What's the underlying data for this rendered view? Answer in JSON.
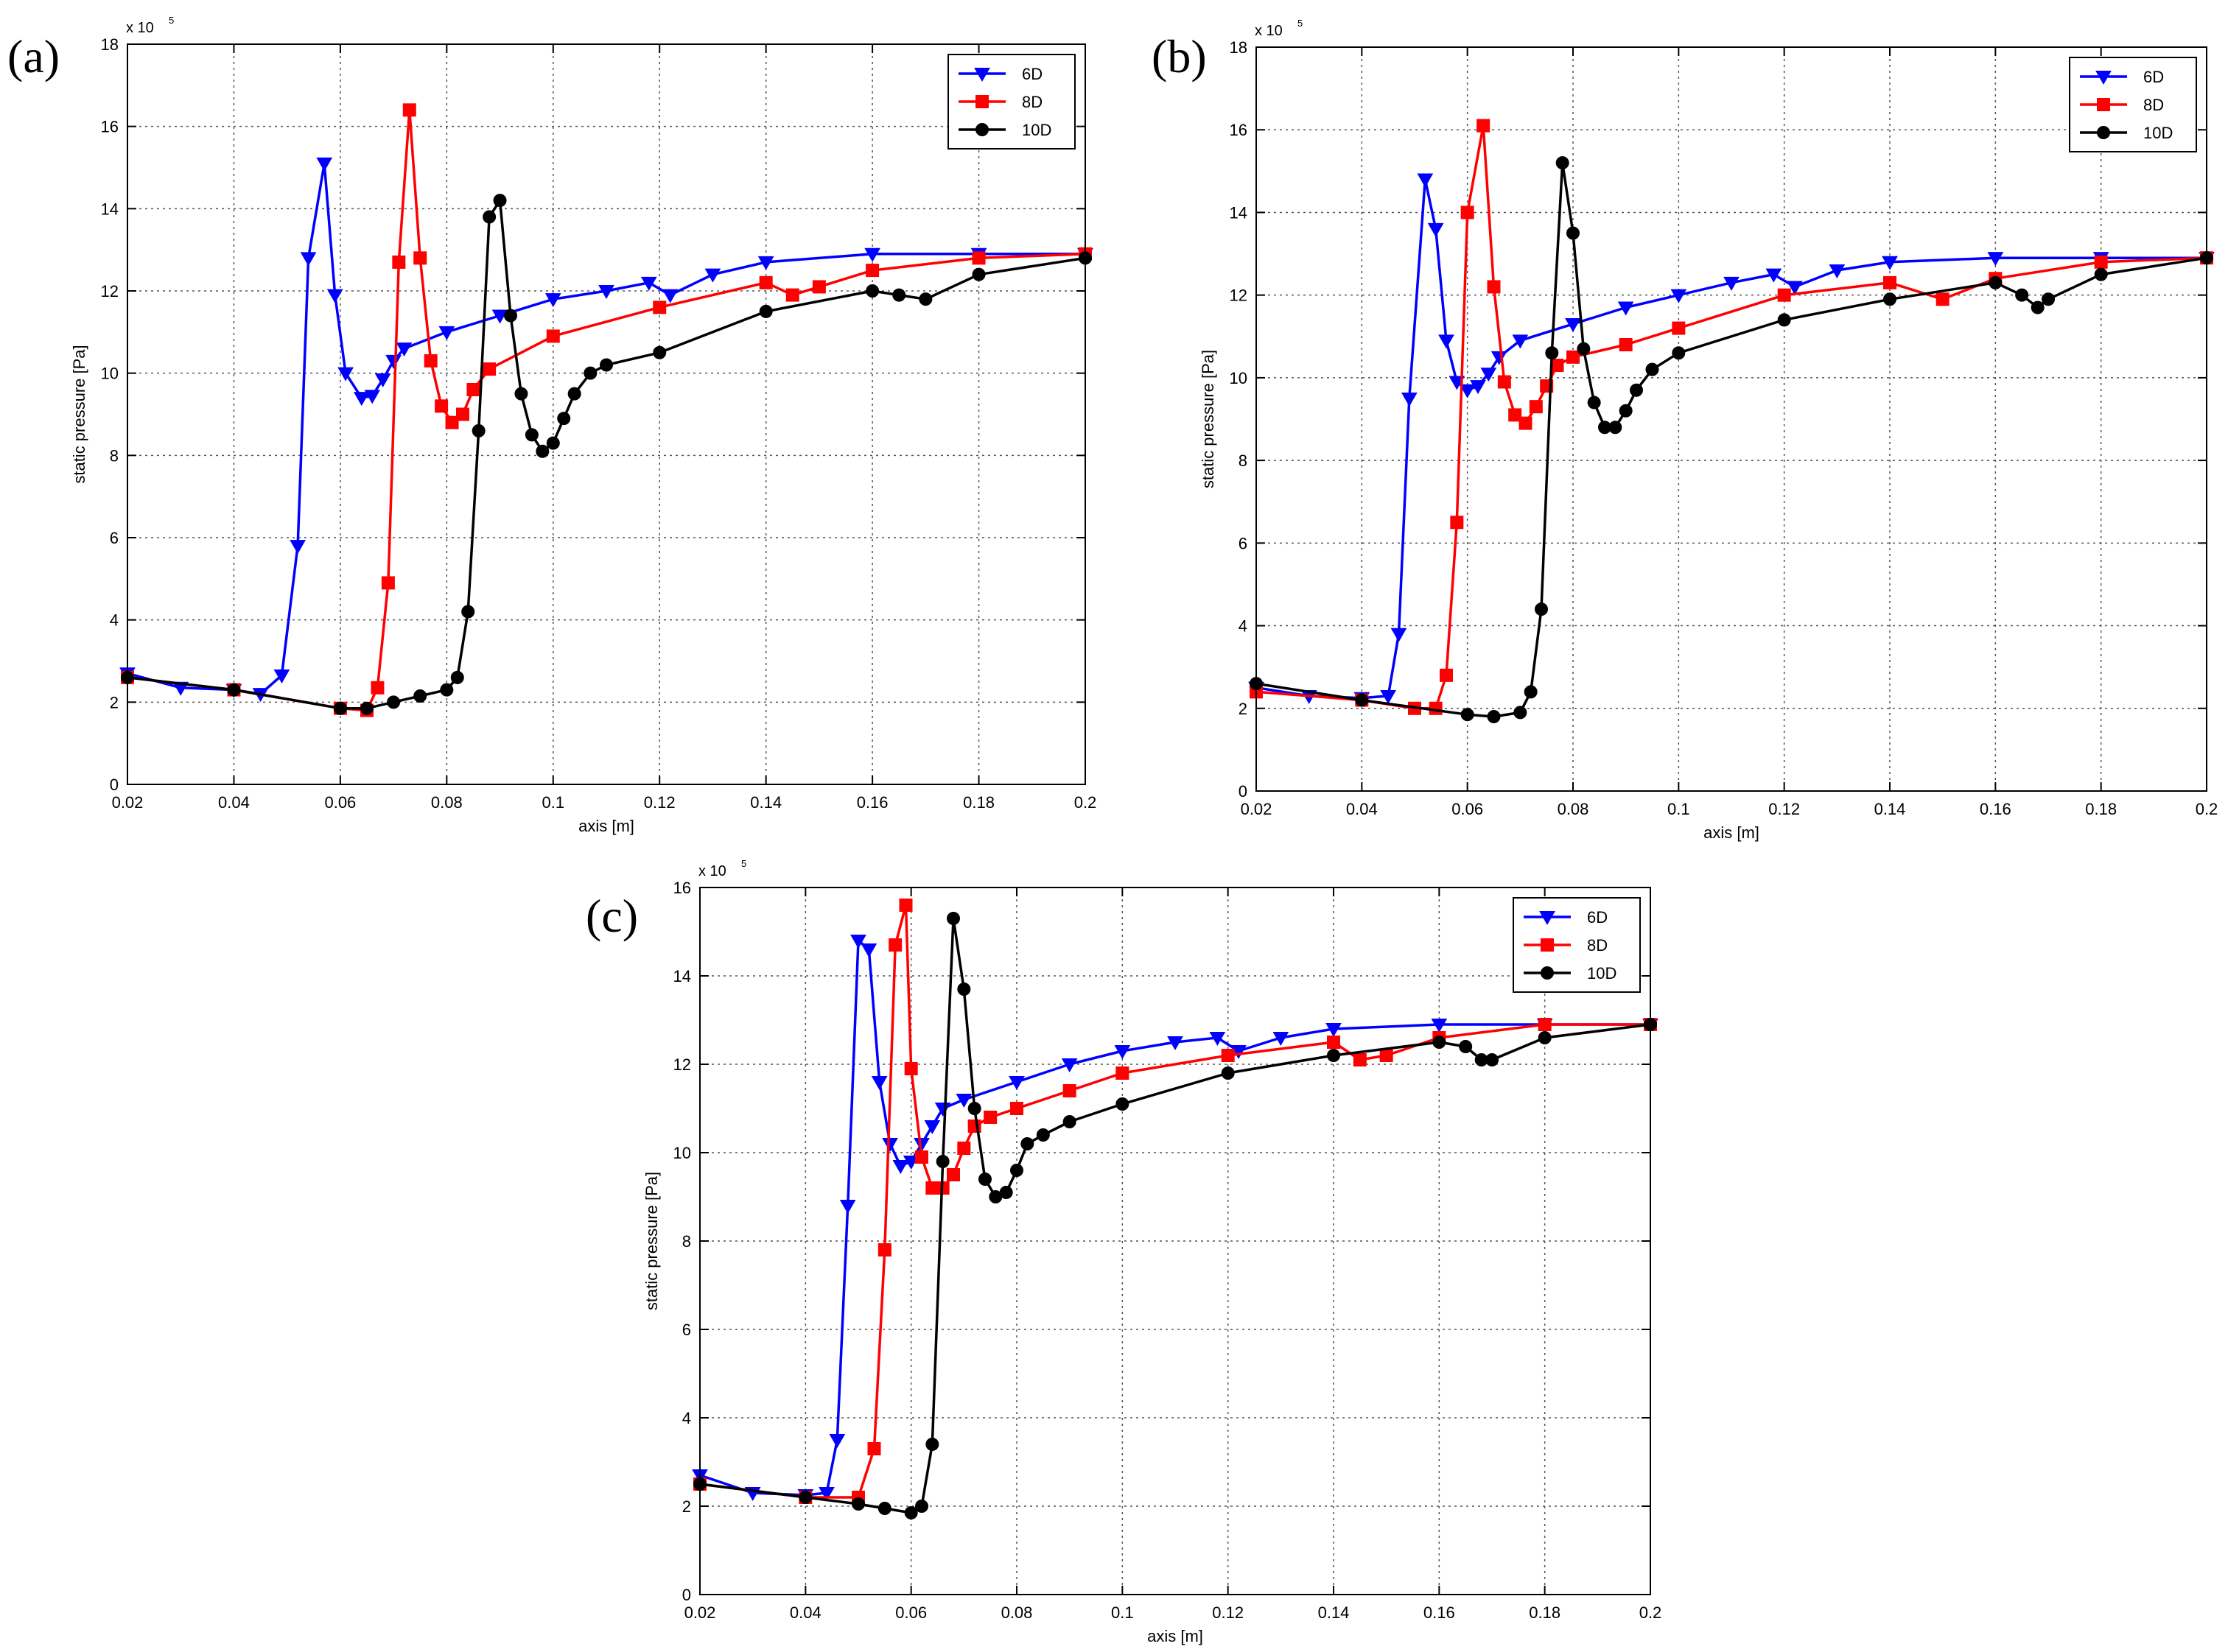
{
  "chart_data": [
    {
      "type": "line",
      "label": "(a)",
      "xlabel": "axis [m]",
      "ylabel": "static pressure [Pa]",
      "y_scale_label": "x 10",
      "y_scale_exponent": "5",
      "xlim": [
        0.02,
        0.2
      ],
      "ylim": [
        0,
        18
      ],
      "xticks": [
        "0.02",
        "0.04",
        "0.06",
        "0.08",
        "0.1",
        "0.12",
        "0.14",
        "0.16",
        "0.18",
        "0.2"
      ],
      "yticks": [
        "0",
        "2",
        "4",
        "6",
        "8",
        "10",
        "12",
        "14",
        "16",
        "18"
      ],
      "grid": true,
      "legend_position": "top-right",
      "series": [
        {
          "name": "6D",
          "color": "#0000ff",
          "marker": "triangle-down",
          "x": [
            0.02,
            0.03,
            0.04,
            0.045,
            0.049,
            0.052,
            0.054,
            0.057,
            0.059,
            0.061,
            0.064,
            0.066,
            0.068,
            0.07,
            0.072,
            0.08,
            0.09,
            0.1,
            0.11,
            0.118,
            0.122,
            0.13,
            0.14,
            0.16,
            0.18,
            0.2
          ],
          "y": [
            2.7,
            2.35,
            2.3,
            2.2,
            2.65,
            5.8,
            12.8,
            15.1,
            11.9,
            10.0,
            9.4,
            9.45,
            9.85,
            10.3,
            10.6,
            11.0,
            11.4,
            11.8,
            12.0,
            12.2,
            11.9,
            12.4,
            12.7,
            12.9,
            12.9,
            12.9
          ]
        },
        {
          "name": "8D",
          "color": "#ff0000",
          "marker": "square",
          "x": [
            0.02,
            0.04,
            0.06,
            0.065,
            0.067,
            0.069,
            0.071,
            0.073,
            0.075,
            0.077,
            0.079,
            0.081,
            0.083,
            0.085,
            0.088,
            0.1,
            0.12,
            0.14,
            0.145,
            0.15,
            0.16,
            0.18,
            0.2
          ],
          "y": [
            2.6,
            2.3,
            1.85,
            1.8,
            2.35,
            4.9,
            12.7,
            16.4,
            12.8,
            10.3,
            9.2,
            8.8,
            9.0,
            9.6,
            10.1,
            10.9,
            11.6,
            12.2,
            11.9,
            12.1,
            12.5,
            12.8,
            12.9
          ]
        },
        {
          "name": "10D",
          "color": "#000000",
          "marker": "circle",
          "x": [
            0.02,
            0.04,
            0.06,
            0.065,
            0.07,
            0.075,
            0.08,
            0.082,
            0.084,
            0.086,
            0.088,
            0.09,
            0.092,
            0.094,
            0.096,
            0.098,
            0.1,
            0.102,
            0.104,
            0.107,
            0.11,
            0.12,
            0.14,
            0.16,
            0.165,
            0.17,
            0.18,
            0.2
          ],
          "y": [
            2.6,
            2.3,
            1.85,
            1.85,
            2.0,
            2.15,
            2.3,
            2.6,
            4.2,
            8.6,
            13.8,
            14.2,
            11.4,
            9.5,
            8.5,
            8.1,
            8.3,
            8.9,
            9.5,
            10.0,
            10.2,
            10.5,
            11.5,
            12.0,
            11.9,
            11.8,
            12.4,
            12.8
          ]
        }
      ]
    },
    {
      "type": "line",
      "label": "(b)",
      "xlabel": "axis [m]",
      "ylabel": "static pressure [Pa]",
      "y_scale_label": "x 10",
      "y_scale_exponent": "5",
      "xlim": [
        0.02,
        0.2
      ],
      "ylim": [
        0,
        18
      ],
      "xticks": [
        "0.02",
        "0.04",
        "0.06",
        "0.08",
        "0.1",
        "0.12",
        "0.14",
        "0.16",
        "0.18",
        "0.2"
      ],
      "yticks": [
        "0",
        "2",
        "4",
        "6",
        "8",
        "10",
        "12",
        "14",
        "16",
        "18"
      ],
      "grid": true,
      "legend_position": "top-right",
      "series": [
        {
          "name": "6D",
          "color": "#0000ff",
          "marker": "triangle-down",
          "x": [
            0.02,
            0.03,
            0.04,
            0.045,
            0.047,
            0.049,
            0.052,
            0.054,
            0.056,
            0.058,
            0.06,
            0.062,
            0.064,
            0.066,
            0.07,
            0.08,
            0.09,
            0.1,
            0.11,
            0.118,
            0.122,
            0.13,
            0.14,
            0.16,
            0.18,
            0.2
          ],
          "y": [
            2.5,
            2.3,
            2.25,
            2.3,
            3.8,
            9.5,
            14.8,
            13.6,
            10.9,
            9.9,
            9.7,
            9.8,
            10.1,
            10.5,
            10.9,
            11.3,
            11.7,
            12.0,
            12.3,
            12.5,
            12.2,
            12.6,
            12.8,
            12.9,
            12.9,
            12.9
          ]
        },
        {
          "name": "8D",
          "color": "#ff0000",
          "marker": "square",
          "x": [
            0.02,
            0.04,
            0.05,
            0.054,
            0.056,
            0.058,
            0.06,
            0.063,
            0.065,
            0.067,
            0.069,
            0.071,
            0.073,
            0.075,
            0.077,
            0.08,
            0.09,
            0.1,
            0.12,
            0.14,
            0.15,
            0.16,
            0.18,
            0.2
          ],
          "y": [
            2.4,
            2.2,
            2.0,
            2.0,
            2.8,
            6.5,
            14.0,
            16.1,
            12.2,
            9.9,
            9.1,
            8.9,
            9.3,
            9.8,
            10.3,
            10.5,
            10.8,
            11.2,
            12.0,
            12.3,
            11.9,
            12.4,
            12.8,
            12.9
          ]
        },
        {
          "name": "10D",
          "color": "#000000",
          "marker": "circle",
          "x": [
            0.02,
            0.04,
            0.06,
            0.065,
            0.07,
            0.072,
            0.074,
            0.076,
            0.078,
            0.08,
            0.082,
            0.084,
            0.086,
            0.088,
            0.09,
            0.092,
            0.095,
            0.1,
            0.12,
            0.14,
            0.16,
            0.165,
            0.168,
            0.17,
            0.18,
            0.2
          ],
          "y": [
            2.6,
            2.2,
            1.85,
            1.8,
            1.9,
            2.4,
            4.4,
            10.6,
            15.2,
            13.5,
            10.7,
            9.4,
            8.8,
            8.8,
            9.2,
            9.7,
            10.2,
            10.6,
            11.4,
            11.9,
            12.3,
            12.0,
            11.7,
            11.9,
            12.5,
            12.9
          ]
        }
      ]
    },
    {
      "type": "line",
      "label": "(c)",
      "xlabel": "axis [m]",
      "ylabel": "static pressure [Pa]",
      "y_scale_label": "x 10",
      "y_scale_exponent": "5",
      "xlim": [
        0.02,
        0.2
      ],
      "ylim": [
        0,
        16
      ],
      "xticks": [
        "0.02",
        "0.04",
        "0.06",
        "0.08",
        "0.1",
        "0.12",
        "0.14",
        "0.16",
        "0.18",
        "0.2"
      ],
      "yticks": [
        "0",
        "2",
        "4",
        "6",
        "8",
        "10",
        "12",
        "14",
        "16"
      ],
      "grid": true,
      "legend_position": "top-right",
      "series": [
        {
          "name": "6D",
          "color": "#0000ff",
          "marker": "triangle-down",
          "x": [
            0.02,
            0.03,
            0.04,
            0.044,
            0.046,
            0.048,
            0.05,
            0.052,
            0.054,
            0.056,
            0.058,
            0.06,
            0.062,
            0.064,
            0.066,
            0.07,
            0.08,
            0.09,
            0.1,
            0.11,
            0.118,
            0.122,
            0.13,
            0.14,
            0.16,
            0.18,
            0.2
          ],
          "y": [
            2.7,
            2.3,
            2.25,
            2.3,
            3.5,
            8.8,
            14.8,
            14.6,
            11.6,
            10.2,
            9.7,
            9.8,
            10.2,
            10.6,
            11.0,
            11.2,
            11.6,
            12.0,
            12.3,
            12.5,
            12.6,
            12.3,
            12.6,
            12.8,
            12.9,
            12.9,
            12.9
          ]
        },
        {
          "name": "8D",
          "color": "#ff0000",
          "marker": "square",
          "x": [
            0.02,
            0.04,
            0.05,
            0.053,
            0.055,
            0.057,
            0.059,
            0.06,
            0.062,
            0.064,
            0.066,
            0.068,
            0.07,
            0.072,
            0.075,
            0.08,
            0.09,
            0.1,
            0.12,
            0.14,
            0.145,
            0.15,
            0.16,
            0.18,
            0.2
          ],
          "y": [
            2.5,
            2.2,
            2.2,
            3.3,
            7.8,
            14.7,
            15.6,
            11.9,
            9.9,
            9.2,
            9.2,
            9.5,
            10.1,
            10.6,
            10.8,
            11.0,
            11.4,
            11.8,
            12.2,
            12.5,
            12.1,
            12.2,
            12.6,
            12.9,
            12.9
          ]
        },
        {
          "name": "10D",
          "color": "#000000",
          "marker": "circle",
          "x": [
            0.02,
            0.04,
            0.05,
            0.055,
            0.06,
            0.062,
            0.064,
            0.066,
            0.068,
            0.07,
            0.072,
            0.074,
            0.076,
            0.078,
            0.08,
            0.082,
            0.085,
            0.09,
            0.1,
            0.12,
            0.14,
            0.16,
            0.165,
            0.168,
            0.17,
            0.18,
            0.2
          ],
          "y": [
            2.5,
            2.2,
            2.05,
            1.95,
            1.85,
            2.0,
            3.4,
            9.8,
            15.3,
            13.7,
            11.0,
            9.4,
            9.0,
            9.1,
            9.6,
            10.2,
            10.4,
            10.7,
            11.1,
            11.8,
            12.2,
            12.5,
            12.4,
            12.1,
            12.1,
            12.6,
            12.9
          ]
        }
      ]
    }
  ]
}
